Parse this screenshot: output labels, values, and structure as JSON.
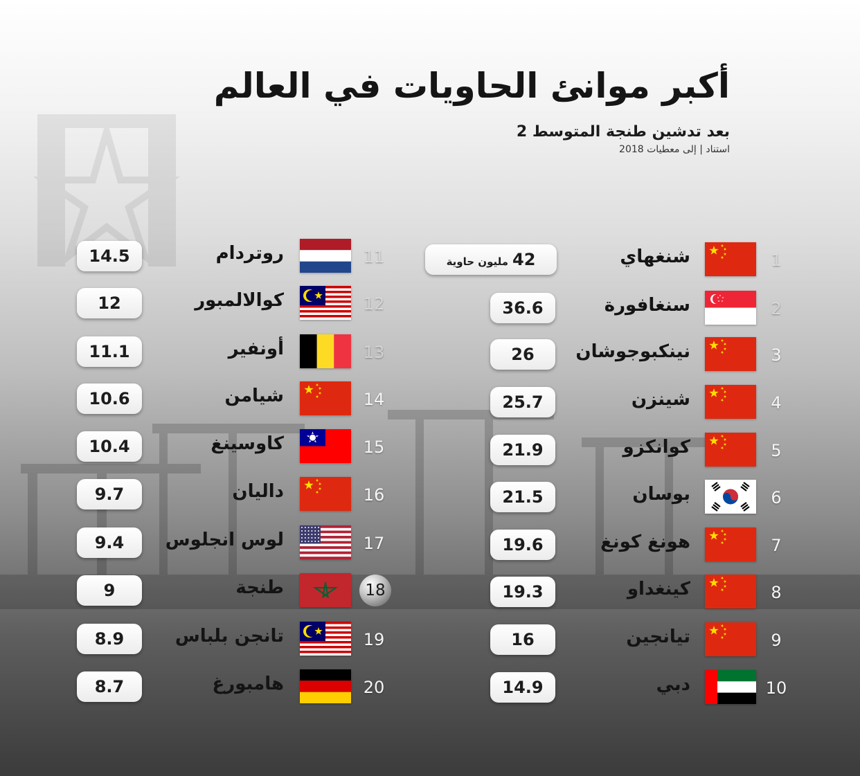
{
  "title": "أكبر موانئ الحاويات في العالم",
  "subtitle": "بعد تدشين طنجة المتوسط 2",
  "source": "استناد | إلى معطيات 2018",
  "chart_data": {
    "type": "table",
    "unit": "مليون حاوية",
    "columns": [
      "rank",
      "port",
      "value"
    ],
    "rows": [
      {
        "rank": "1",
        "port": "شنغهاي",
        "country": "china",
        "value": 42,
        "label": "42"
      },
      {
        "rank": "2",
        "port": "سنغافورة",
        "country": "singapore",
        "value": 36.6,
        "label": "36.6"
      },
      {
        "rank": "3",
        "port": "نينكبوجوشان",
        "country": "china",
        "value": 26,
        "label": "26"
      },
      {
        "rank": "4",
        "port": "شينزن",
        "country": "china",
        "value": 25.7,
        "label": "25.7"
      },
      {
        "rank": "5",
        "port": "كوانكزو",
        "country": "china",
        "value": 21.9,
        "label": "21.9"
      },
      {
        "rank": "6",
        "port": "بوسان",
        "country": "south-korea",
        "value": 21.5,
        "label": "21.5"
      },
      {
        "rank": "7",
        "port": "هونغ كونغ",
        "country": "china",
        "value": 19.6,
        "label": "19.6"
      },
      {
        "rank": "8",
        "port": "كينغداو",
        "country": "china",
        "value": 19.3,
        "label": "19.3"
      },
      {
        "rank": "9",
        "port": "تيانجين",
        "country": "china",
        "value": 16,
        "label": "16"
      },
      {
        "rank": "10",
        "port": "دبي",
        "country": "uae",
        "value": 14.9,
        "label": "14.9"
      },
      {
        "rank": "11",
        "port": "روتردام",
        "country": "netherlands",
        "value": 14.5,
        "label": "14.5"
      },
      {
        "rank": "12",
        "port": "كوالالمبور",
        "country": "malaysia",
        "value": 12,
        "label": "12"
      },
      {
        "rank": "13",
        "port": "أونفير",
        "country": "belgium",
        "value": 11.1,
        "label": "11.1"
      },
      {
        "rank": "14",
        "port": "شيامن",
        "country": "china",
        "value": 10.6,
        "label": "10.6"
      },
      {
        "rank": "15",
        "port": "كاوسينغ",
        "country": "taiwan",
        "value": 10.4,
        "label": "10.4"
      },
      {
        "rank": "16",
        "port": "داليان",
        "country": "china",
        "value": 9.7,
        "label": "9.7"
      },
      {
        "rank": "17",
        "port": "لوس انجلوس",
        "country": "usa",
        "value": 9.4,
        "label": "9.4"
      },
      {
        "rank": "18",
        "port": "طنجة",
        "country": "morocco",
        "value": 9,
        "label": "9",
        "highlight": true
      },
      {
        "rank": "19",
        "port": "تانجن بلباس",
        "country": "malaysia",
        "value": 8.9,
        "label": "8.9"
      },
      {
        "rank": "20",
        "port": "هامبورغ",
        "country": "germany",
        "value": 8.7,
        "label": "8.7"
      }
    ]
  },
  "colors": {
    "china": "#de2910",
    "star": "#ffde00",
    "pill": "#f2f2f2",
    "title": "#151515"
  }
}
